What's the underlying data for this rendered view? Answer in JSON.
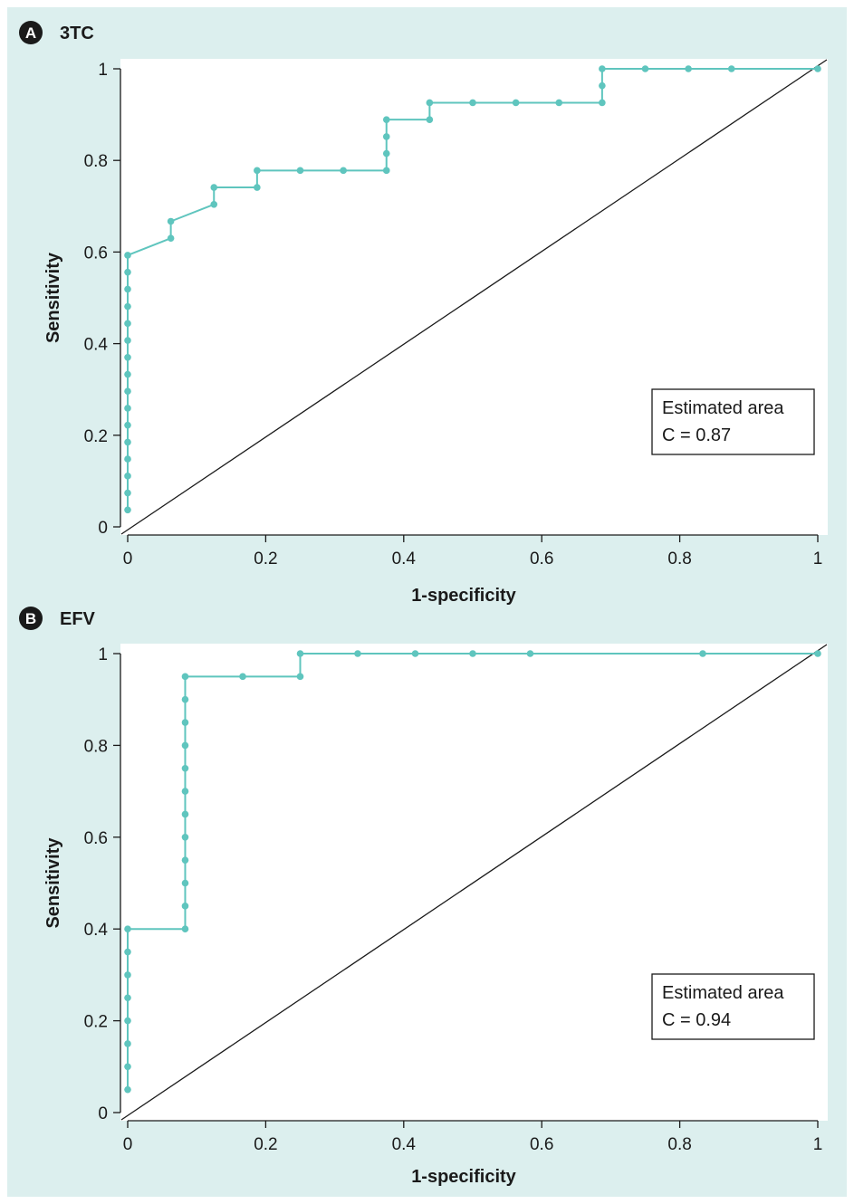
{
  "chart_data": [
    {
      "type": "line",
      "panel_letter": "A",
      "title": "3TC",
      "xlabel": "1-specificity",
      "ylabel": "Sensitivity",
      "xlim": [
        0,
        1
      ],
      "ylim": [
        0,
        1
      ],
      "xticks": [
        "0",
        "0.2",
        "0.4",
        "0.6",
        "0.8",
        "1"
      ],
      "yticks": [
        "0",
        "0.2",
        "0.4",
        "0.6",
        "0.8",
        "1"
      ],
      "grid": false,
      "legend_position": "bottom-right",
      "annotation": [
        "Estimated area",
        "C = 0.87"
      ],
      "colors": {
        "curve": "#5fc5be",
        "diagonal": "#1a1a1a",
        "background": "#dcefee"
      },
      "series": [
        {
          "values": [
            [
              0,
              0.037
            ],
            [
              0,
              0.074
            ],
            [
              0,
              0.111
            ],
            [
              0,
              0.148
            ],
            [
              0,
              0.185
            ],
            [
              0,
              0.222
            ],
            [
              0,
              0.259
            ],
            [
              0,
              0.296
            ],
            [
              0,
              0.333
            ],
            [
              0,
              0.37
            ],
            [
              0,
              0.407
            ],
            [
              0,
              0.444
            ],
            [
              0,
              0.481
            ],
            [
              0,
              0.519
            ],
            [
              0,
              0.556
            ],
            [
              0,
              0.593
            ],
            [
              0.0625,
              0.63
            ],
            [
              0.0625,
              0.667
            ],
            [
              0.125,
              0.704
            ],
            [
              0.125,
              0.741
            ],
            [
              0.1875,
              0.741
            ],
            [
              0.1875,
              0.778
            ],
            [
              0.25,
              0.778
            ],
            [
              0.3125,
              0.778
            ],
            [
              0.375,
              0.778
            ],
            [
              0.375,
              0.815
            ],
            [
              0.375,
              0.852
            ],
            [
              0.375,
              0.889
            ],
            [
              0.4375,
              0.889
            ],
            [
              0.4375,
              0.926
            ],
            [
              0.5,
              0.926
            ],
            [
              0.5625,
              0.926
            ],
            [
              0.625,
              0.926
            ],
            [
              0.6875,
              0.926
            ],
            [
              0.6875,
              0.963
            ],
            [
              0.6875,
              1.0
            ],
            [
              0.75,
              1.0
            ],
            [
              0.8125,
              1.0
            ],
            [
              0.875,
              1.0
            ],
            [
              1.0,
              1.0
            ]
          ]
        }
      ]
    },
    {
      "type": "line",
      "panel_letter": "B",
      "title": "EFV",
      "xlabel": "1-specificity",
      "ylabel": "Sensitivity",
      "xlim": [
        0,
        1
      ],
      "ylim": [
        0,
        1
      ],
      "xticks": [
        "0",
        "0.2",
        "0.4",
        "0.6",
        "0.8",
        "1"
      ],
      "yticks": [
        "0",
        "0.2",
        "0.4",
        "0.6",
        "0.8",
        "1"
      ],
      "grid": false,
      "legend_position": "bottom-right",
      "annotation": [
        "Estimated area",
        "C = 0.94"
      ],
      "colors": {
        "curve": "#5fc5be",
        "diagonal": "#1a1a1a",
        "background": "#dcefee"
      },
      "series": [
        {
          "values": [
            [
              0,
              0.05
            ],
            [
              0,
              0.1
            ],
            [
              0,
              0.15
            ],
            [
              0,
              0.2
            ],
            [
              0,
              0.25
            ],
            [
              0,
              0.3
            ],
            [
              0,
              0.35
            ],
            [
              0,
              0.4
            ],
            [
              0.0833,
              0.4
            ],
            [
              0.0833,
              0.45
            ],
            [
              0.0833,
              0.5
            ],
            [
              0.0833,
              0.55
            ],
            [
              0.0833,
              0.6
            ],
            [
              0.0833,
              0.65
            ],
            [
              0.0833,
              0.7
            ],
            [
              0.0833,
              0.75
            ],
            [
              0.0833,
              0.8
            ],
            [
              0.0833,
              0.85
            ],
            [
              0.0833,
              0.9
            ],
            [
              0.0833,
              0.95
            ],
            [
              0.1667,
              0.95
            ],
            [
              0.25,
              0.95
            ],
            [
              0.25,
              1.0
            ],
            [
              0.3333,
              1.0
            ],
            [
              0.4167,
              1.0
            ],
            [
              0.5,
              1.0
            ],
            [
              0.5833,
              1.0
            ],
            [
              0.8333,
              1.0
            ],
            [
              1.0,
              1.0
            ]
          ]
        }
      ]
    }
  ]
}
